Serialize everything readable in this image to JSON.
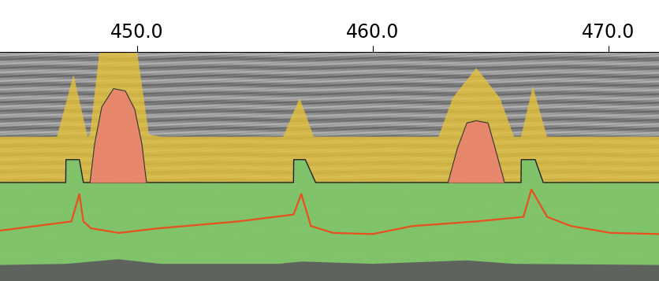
{
  "chart_data": {
    "type": "profile",
    "xlim": [
      444.18,
      472.19
    ],
    "xticks": [
      {
        "value": 450,
        "label": "450.0"
      },
      {
        "value": 460,
        "label": "460.0"
      },
      {
        "value": 470,
        "label": "470.0"
      }
    ],
    "ylim": [
      100,
      0
    ],
    "tick_labels": "x",
    "series": [
      {
        "type": "area",
        "color": "#e6c23a",
        "base": 100,
        "x": [
          444.18,
          446.6,
          447.3,
          447.9,
          448.0,
          448.4,
          450.0,
          450.5,
          451.0,
          456.2,
          456.9,
          457.5,
          458.0,
          462.8,
          463.4,
          464.4,
          465.4,
          466.0,
          466.3,
          466.8,
          467.4,
          467.8,
          472.19
        ],
        "values": [
          37,
          37,
          10,
          37,
          36,
          0,
          0,
          36,
          37,
          37,
          20,
          37,
          37,
          37,
          20,
          7,
          20,
          37,
          37,
          15,
          37,
          37,
          37
        ]
      },
      {
        "type": "area",
        "color": "#7cc46c",
        "base": 100,
        "x": [
          444.18,
          446.97,
          446.98,
          447.55,
          447.72,
          456.64,
          456.65,
          457.14,
          457.58,
          466.3,
          466.31,
          466.9,
          467.24,
          472.19
        ],
        "values": [
          57,
          57,
          47,
          47,
          57,
          57,
          47,
          47,
          57,
          57,
          47,
          47,
          57,
          57
        ]
      },
      {
        "type": "area",
        "color": "#5e5e5e",
        "base": 100,
        "x": [
          444.18,
          447.0,
          449.2,
          451.0,
          456.0,
          457.0,
          460.0,
          464.0,
          466.0,
          472.19
        ],
        "values": [
          93,
          92.5,
          90.5,
          92.5,
          92.5,
          91.5,
          92.5,
          91,
          92.5,
          93
        ]
      },
      {
        "type": "area",
        "color": "#e8846e",
        "base": 57,
        "x": [
          448.0,
          448.2,
          448.5,
          449.0,
          449.5,
          449.9,
          450.2,
          450.4
        ],
        "values": [
          57,
          40,
          24,
          16,
          17,
          25,
          40,
          57
        ]
      },
      {
        "type": "area",
        "color": "#e8846e",
        "base": 57,
        "x": [
          463.2,
          463.6,
          464.0,
          464.4,
          464.9,
          465.2,
          465.6
        ],
        "values": [
          57,
          42,
          31,
          30,
          31,
          42,
          57
        ]
      },
      {
        "type": "line",
        "color": "#e8501e",
        "x": [
          444.18,
          447.21,
          447.55,
          447.72,
          448.05,
          449.23,
          450.91,
          454.28,
          456.64,
          456.97,
          457.38,
          458.32,
          460.0,
          461.69,
          464.38,
          466.4,
          466.74,
          467.41,
          468.42,
          470.11,
          472.19
        ],
        "values": [
          78,
          74,
          62,
          74,
          77,
          79,
          77,
          74,
          71,
          62,
          76,
          79,
          79.5,
          76,
          74,
          72,
          60,
          72,
          76,
          79,
          79.5
        ]
      }
    ]
  }
}
